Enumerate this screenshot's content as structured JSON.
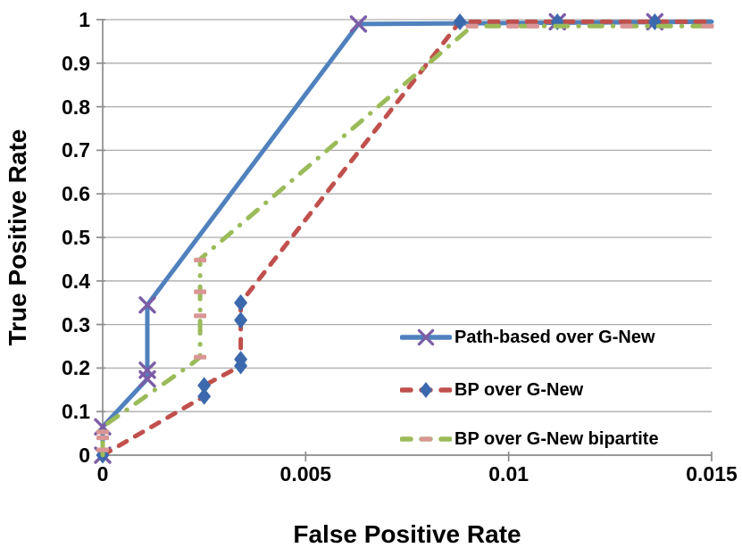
{
  "chart_data": {
    "type": "line",
    "title": "",
    "xlabel": "False Positive Rate",
    "ylabel": "True Positive Rate",
    "xlim": [
      0,
      0.015
    ],
    "ylim": [
      0,
      1
    ],
    "grid": "horizontal",
    "legend_position": "inside-lower-right",
    "xticks": {
      "values": [
        0,
        0.005,
        0.01,
        0.015
      ],
      "labels": [
        "0",
        "0.005",
        "0.01",
        "0.015"
      ]
    },
    "yticks": {
      "values": [
        0,
        0.1,
        0.2,
        0.3,
        0.4,
        0.5,
        0.6,
        0.7,
        0.8,
        0.9,
        1
      ],
      "labels": [
        "0",
        "0.1",
        "0.2",
        "0.3",
        "0.4",
        "0.5",
        "0.6",
        "0.7",
        "0.8",
        "0.9",
        "1"
      ]
    },
    "colors": {
      "gridline": "#ACACAC",
      "axis": "#8C8C8C",
      "text": "#000000",
      "background": "#FFFFFF",
      "series_blue": "#4F81BD",
      "series_red": "#C0504D",
      "series_green": "#9BBB59",
      "marker_purple": "#7B5DA6",
      "marker_blue": "#3C69AD",
      "marker_pink": "#D99694"
    },
    "series": [
      {
        "name": "Path-based over G-New",
        "line_color": "#4F81BD",
        "line_style": "solid",
        "marker": "x",
        "marker_color": "#7B5DA6",
        "line": [
          [
            0,
            0
          ],
          [
            0,
            0.065
          ],
          [
            0.0011,
            0.175
          ],
          [
            0.0011,
            0.345
          ],
          [
            0.0063,
            0.99
          ],
          [
            0.015,
            0.995
          ]
        ],
        "markers": [
          [
            0,
            0
          ],
          [
            0,
            0.065
          ],
          [
            0.0011,
            0.175
          ],
          [
            0.0011,
            0.195
          ],
          [
            0.0011,
            0.345
          ],
          [
            0.0063,
            0.99
          ],
          [
            0.0112,
            0.995
          ],
          [
            0.0136,
            0.995
          ]
        ]
      },
      {
        "name": "BP over G-New",
        "line_color": "#C0504D",
        "line_style": "dashed",
        "marker": "diamond",
        "marker_color": "#3C69AD",
        "line": [
          [
            0,
            0
          ],
          [
            0.0025,
            0.135
          ],
          [
            0.0025,
            0.16
          ],
          [
            0.0034,
            0.205
          ],
          [
            0.0034,
            0.35
          ],
          [
            0.0088,
            0.995
          ],
          [
            0.015,
            0.995
          ]
        ],
        "markers": [
          [
            0,
            0
          ],
          [
            0.0025,
            0.135
          ],
          [
            0.0025,
            0.16
          ],
          [
            0.0034,
            0.205
          ],
          [
            0.0034,
            0.22
          ],
          [
            0.0034,
            0.31
          ],
          [
            0.0034,
            0.35
          ],
          [
            0.0088,
            0.995
          ],
          [
            0.0112,
            0.995
          ],
          [
            0.0136,
            0.995
          ]
        ]
      },
      {
        "name": "BP over G-New bipartite",
        "line_color": "#9BBB59",
        "line_style": "dash-dot",
        "marker": "dash",
        "marker_color": "#D99694",
        "line": [
          [
            0,
            0
          ],
          [
            0,
            0.065
          ],
          [
            0.0022,
            0.21
          ],
          [
            0.0024,
            0.225
          ],
          [
            0.0024,
            0.45
          ],
          [
            0.0091,
            0.985
          ],
          [
            0.015,
            0.985
          ]
        ],
        "markers": [
          [
            0,
            0.012
          ],
          [
            0,
            0.04
          ],
          [
            0,
            0.053
          ],
          [
            0.0024,
            0.225
          ],
          [
            0.0024,
            0.32
          ],
          [
            0.0024,
            0.375
          ],
          [
            0.0024,
            0.448
          ],
          [
            0.0091,
            0.985
          ],
          [
            0.0101,
            0.985
          ],
          [
            0.0106,
            0.985
          ],
          [
            0.0129,
            0.985
          ],
          [
            0.0149,
            0.985
          ]
        ]
      }
    ]
  }
}
